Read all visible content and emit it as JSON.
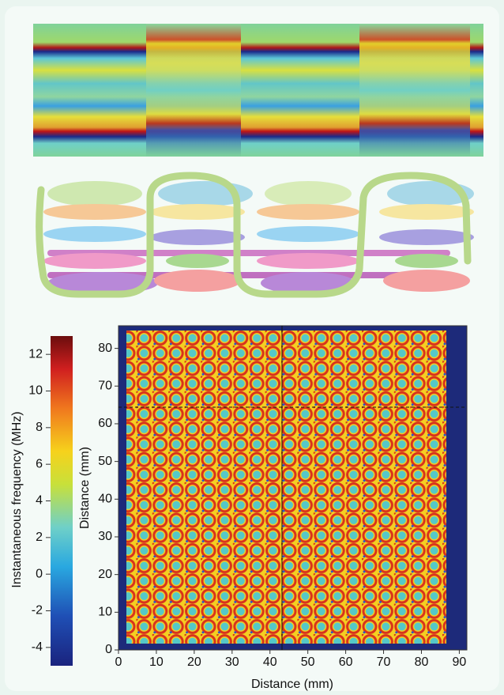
{
  "chart_data": {
    "type": "heatmap",
    "xlabel": "Distance (mm)",
    "ylabel": "Distance (mm)",
    "xlim": [
      0,
      92
    ],
    "xticks": [
      0,
      10,
      20,
      30,
      40,
      50,
      60,
      70,
      80,
      90
    ],
    "ylim": [
      0,
      86
    ],
    "yticks": [
      0,
      10,
      20,
      30,
      40,
      50,
      60,
      70,
      80
    ],
    "colorbar": {
      "label": "Instantaneous frequency (MHz)",
      "lim": [
        -5,
        13
      ],
      "ticks": [
        -4,
        -2,
        0,
        2,
        4,
        6,
        8,
        10,
        12
      ]
    }
  }
}
